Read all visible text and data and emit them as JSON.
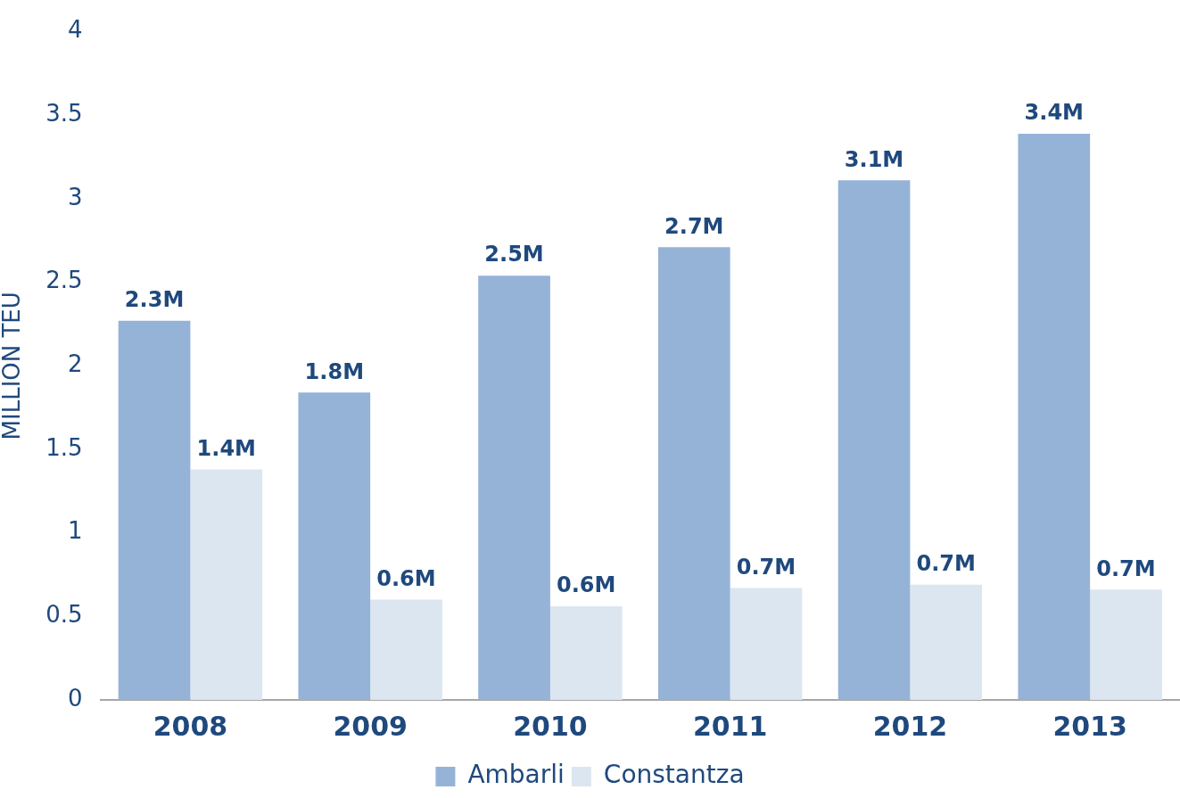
{
  "chart_data": {
    "type": "bar",
    "ylabel": "MILLION TEU",
    "categories": [
      "2008",
      "2009",
      "2010",
      "2011",
      "2012",
      "2013"
    ],
    "series": [
      {
        "name": "Ambarli",
        "color": "#95b3d7",
        "values": [
          2.27,
          1.84,
          2.54,
          2.71,
          3.11,
          3.39
        ],
        "value_labels": [
          "2.3M",
          "1.8M",
          "2.5M",
          "2.7M",
          "3.1M",
          "3.4M"
        ]
      },
      {
        "name": "Constantza",
        "color": "#dce6f1",
        "values": [
          1.38,
          0.6,
          0.56,
          0.67,
          0.69,
          0.66
        ],
        "value_labels": [
          "1.4M",
          "0.6M",
          "0.6M",
          "0.7M",
          "0.7M",
          "0.7M"
        ]
      }
    ],
    "ylim": [
      0,
      4
    ],
    "yticks": [
      0,
      0.5,
      1,
      1.5,
      2,
      2.5,
      3,
      3.5,
      4
    ],
    "grid": false,
    "legend": "bottom"
  }
}
